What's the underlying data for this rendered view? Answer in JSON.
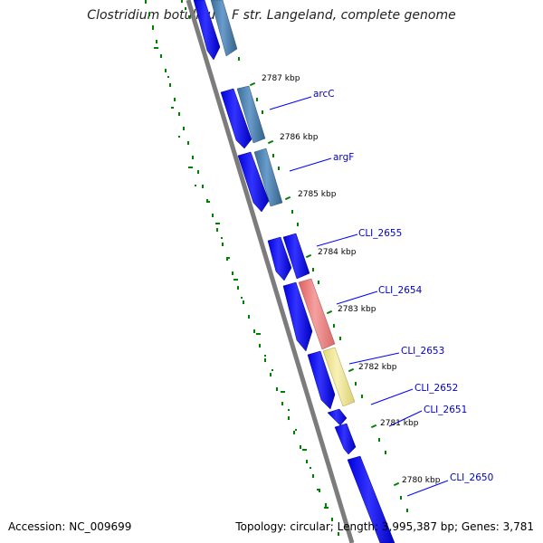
{
  "title": "Clostridium botulinum F str. Langeland, complete genome",
  "accession_text": "Accession: NC_009699",
  "summary_text": "Topology: circular; Length: 3,995,387 bp; Genes: 3,781",
  "colors": {
    "backbone": "#808080",
    "forward_cds": "#0000ff",
    "cds_steelblue": "#4682b4",
    "cds_salmon": "#f08080",
    "cds_khaki": "#f0e68c",
    "tick": "#008000",
    "label": "#0000cc"
  },
  "ticks": [
    {
      "label": "2787 kbp"
    },
    {
      "label": "2786 kbp"
    },
    {
      "label": "2785 kbp"
    },
    {
      "label": "2784 kbp"
    },
    {
      "label": "2783 kbp"
    },
    {
      "label": "2782 kbp"
    },
    {
      "label": "2781 kbp"
    },
    {
      "label": "2780 kbp"
    }
  ],
  "genes": [
    {
      "name": "arcC"
    },
    {
      "name": "argF"
    },
    {
      "name": "CLI_2655"
    },
    {
      "name": "CLI_2654"
    },
    {
      "name": "CLI_2653"
    },
    {
      "name": "CLI_2652"
    },
    {
      "name": "CLI_2651"
    },
    {
      "name": "CLI_2650"
    }
  ]
}
